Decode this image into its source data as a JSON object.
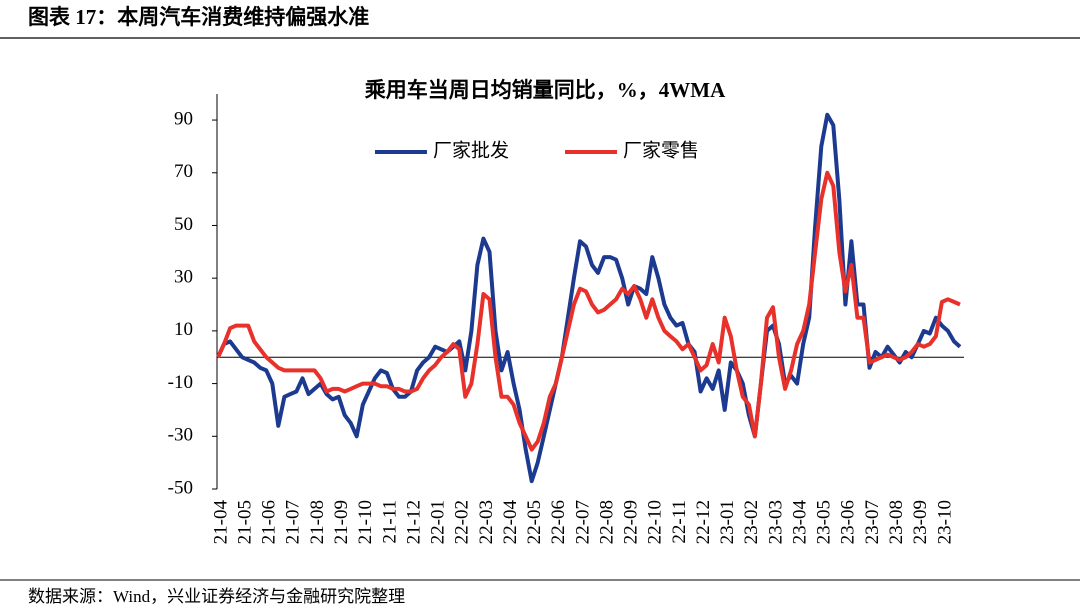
{
  "figure_title": "图表 17：本周汽车消费维持偏强水准",
  "source": "数据来源：Wind，兴业证券经济与金融研究院整理",
  "chart_data": {
    "type": "line",
    "title": "乘用车当周日均销量同比，%，4WMA",
    "categories": [
      "21-04",
      null,
      null,
      null,
      "21-05",
      null,
      null,
      null,
      "21-06",
      null,
      null,
      null,
      "21-07",
      null,
      null,
      null,
      "21-08",
      null,
      null,
      null,
      "21-09",
      null,
      null,
      null,
      "21-10",
      null,
      null,
      null,
      "21-11",
      null,
      null,
      null,
      "21-12",
      null,
      null,
      null,
      "22-01",
      null,
      null,
      null,
      "22-02",
      null,
      null,
      null,
      "22-03",
      null,
      null,
      null,
      "22-04",
      null,
      null,
      null,
      "22-05",
      null,
      null,
      null,
      "22-06",
      null,
      null,
      null,
      "22-07",
      null,
      null,
      null,
      "22-08",
      null,
      null,
      null,
      "22-09",
      null,
      null,
      null,
      "22-10",
      null,
      null,
      null,
      "22-11",
      null,
      null,
      null,
      "22-12",
      null,
      null,
      null,
      "23-01",
      null,
      null,
      null,
      "23-02",
      null,
      null,
      null,
      "23-03",
      null,
      null,
      null,
      "23-04",
      null,
      null,
      null,
      "23-05",
      null,
      null,
      null,
      "23-06",
      null,
      null,
      null,
      "23-07",
      null,
      null,
      null,
      "23-08",
      null,
      null,
      null,
      "23-09",
      null,
      null,
      null,
      "23-10",
      null,
      null,
      null
    ],
    "series": [
      {
        "name": "厂家批发",
        "color": "#1c3a8f",
        "values": [
          0,
          5,
          6,
          3,
          0,
          -1,
          -2,
          -4,
          -5,
          -10,
          -26,
          -15,
          -14,
          -13,
          -8,
          -14,
          -12,
          -10,
          -14,
          -16,
          -15,
          -22,
          -25,
          -30,
          -18,
          -13,
          -8,
          -5,
          -6,
          -12,
          -15,
          -15,
          -13,
          -5,
          -2,
          0,
          4,
          3,
          2,
          4,
          6,
          -5,
          10,
          35,
          45,
          40,
          10,
          -5,
          2,
          -10,
          -20,
          -35,
          -47,
          -40,
          -30,
          -20,
          -10,
          0,
          15,
          30,
          44,
          42,
          35,
          32,
          38,
          38,
          37,
          30,
          20,
          27,
          26,
          24,
          38,
          30,
          20,
          15,
          12,
          13,
          5,
          2,
          -13,
          -8,
          -12,
          -5,
          -20,
          -2,
          -5,
          -10,
          -22,
          -30,
          -10,
          10,
          12,
          5,
          -10,
          -7,
          -10,
          5,
          15,
          50,
          80,
          92,
          88,
          60,
          20,
          44,
          20,
          20,
          -4,
          2,
          0,
          4,
          1,
          -2,
          2,
          0,
          5,
          10,
          9,
          15,
          12,
          10,
          6,
          4
        ]
      },
      {
        "name": "厂家零售",
        "color": "#e8312a",
        "values": [
          0,
          5,
          11,
          12,
          12,
          12,
          6,
          3,
          0,
          -2,
          -4,
          -5,
          -5,
          -5,
          -5,
          -5,
          -5,
          -8,
          -13,
          -12,
          -12,
          -13,
          -12,
          -11,
          -10,
          -10,
          -10,
          -11,
          -11,
          -12,
          -12,
          -13,
          -13,
          -12,
          -8,
          -5,
          -3,
          0,
          2,
          5,
          3,
          -15,
          -10,
          5,
          24,
          22,
          0,
          -15,
          -15,
          -18,
          -25,
          -30,
          -35,
          -32,
          -25,
          -15,
          -10,
          0,
          10,
          20,
          26,
          25,
          20,
          17,
          18,
          20,
          22,
          26,
          24,
          27,
          22,
          15,
          22,
          15,
          10,
          8,
          6,
          3,
          5,
          0,
          -5,
          -3,
          5,
          -2,
          15,
          8,
          -5,
          -15,
          -18,
          -30,
          -10,
          15,
          19,
          0,
          -12,
          -5,
          5,
          10,
          20,
          40,
          60,
          70,
          65,
          40,
          25,
          35,
          15,
          15,
          -2,
          -1,
          0,
          1,
          0,
          -1,
          0,
          2,
          5,
          4,
          5,
          8,
          21,
          22,
          21,
          20
        ]
      }
    ],
    "ylim": [
      -50,
      100
    ],
    "yticks": [
      -50,
      -30,
      -10,
      10,
      30,
      50,
      70,
      90
    ],
    "legend": "top",
    "grid": false
  }
}
